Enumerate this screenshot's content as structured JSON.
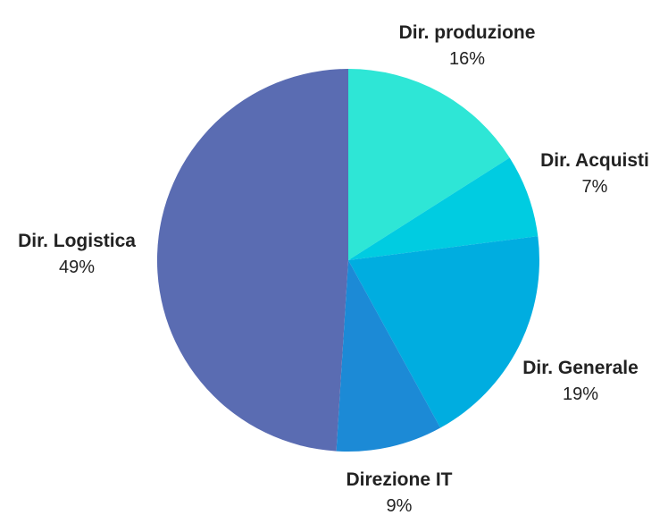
{
  "chart_data": {
    "type": "pie",
    "start_angle_deg": 0,
    "direction": "clockwise",
    "slices": [
      {
        "label": "Dir. produzione",
        "value": 16,
        "display": "16%",
        "color": "#2EE6D6"
      },
      {
        "label": "Dir. Acquisti",
        "value": 7,
        "display": "7%",
        "color": "#00CCE1"
      },
      {
        "label": "Dir. Generale",
        "value": 19,
        "display": "19%",
        "color": "#00ADE0"
      },
      {
        "label": "Direzione IT",
        "value": 9,
        "display": "9%",
        "color": "#1C8AD6"
      },
      {
        "label": "Dir. Logistica",
        "value": 49,
        "display": "49%",
        "color": "#5A6CB2"
      }
    ]
  }
}
